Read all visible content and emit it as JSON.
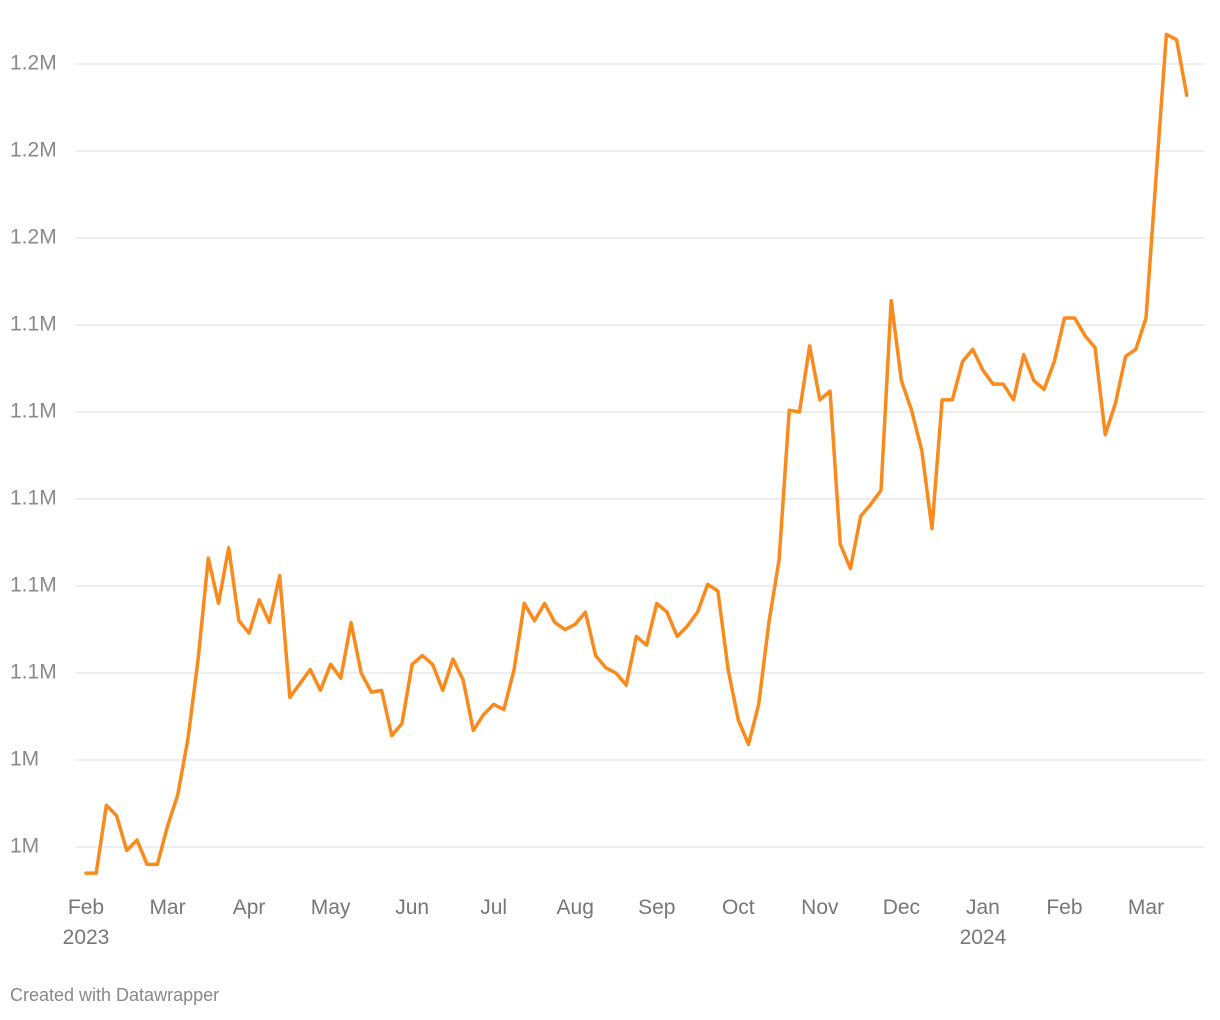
{
  "chart_data": {
    "type": "line",
    "credit": "Created with Datawrapper",
    "categories": [
      "Feb 2023",
      null,
      null,
      null,
      null,
      null,
      null,
      null,
      "Mar",
      null,
      null,
      null,
      null,
      null,
      null,
      null,
      "Apr",
      null,
      null,
      null,
      null,
      null,
      null,
      null,
      "May",
      null,
      null,
      null,
      null,
      null,
      null,
      null,
      "Jun",
      null,
      null,
      null,
      null,
      null,
      null,
      null,
      "Jul",
      null,
      null,
      null,
      null,
      null,
      null,
      null,
      "Aug",
      null,
      null,
      null,
      null,
      null,
      null,
      null,
      "Sep",
      null,
      null,
      null,
      null,
      null,
      null,
      null,
      "Oct",
      null,
      null,
      null,
      null,
      null,
      null,
      null,
      "Nov",
      null,
      null,
      null,
      null,
      null,
      null,
      null,
      "Dec",
      null,
      null,
      null,
      null,
      null,
      null,
      null,
      "Jan 2024",
      null,
      null,
      null,
      null,
      null,
      null,
      null,
      "Feb",
      null,
      null,
      null,
      null,
      null,
      null,
      null,
      "Mar",
      null,
      null,
      null,
      null
    ],
    "values": [
      992500,
      992500,
      1012000,
      1009000,
      999000,
      1002000,
      995000,
      995000,
      1006000,
      1015000,
      1031000,
      1054000,
      1083000,
      1070000,
      1086000,
      1065000,
      1061500,
      1071000,
      1064500,
      1078000,
      1043000,
      1047000,
      1051000,
      1045000,
      1052500,
      1048500,
      1064500,
      1050000,
      1044500,
      1045000,
      1032000,
      1035500,
      1052500,
      1055000,
      1052500,
      1045000,
      1054000,
      1048000,
      1033500,
      1038000,
      1041000,
      1039500,
      1051000,
      1070000,
      1065000,
      1070000,
      1064500,
      1062500,
      1064000,
      1067500,
      1055000,
      1051500,
      1050000,
      1046500,
      1060500,
      1058000,
      1070000,
      1067500,
      1060500,
      1063500,
      1067500,
      1075500,
      1073500,
      1051000,
      1036500,
      1029500,
      1041000,
      1064500,
      1082500,
      1125500,
      1125000,
      1144000,
      1128500,
      1131000,
      1087000,
      1080000,
      1095000,
      1098500,
      1102500,
      1157000,
      1134000,
      1125500,
      1114000,
      1091500,
      1128500,
      1128500,
      1139500,
      1143000,
      1137000,
      1133000,
      1133000,
      1128500,
      1141500,
      1134000,
      1131500,
      1139500,
      1152000,
      1152000,
      1147000,
      1143500,
      1118500,
      1127500,
      1141000,
      1143000,
      1152000,
      1193000,
      1233500,
      1232000,
      1216000
    ],
    "color": "#fa8a1c",
    "ylim": [
      988000,
      1238000
    ],
    "yticks": [
      {
        "value": 1000000,
        "label": "1M"
      },
      {
        "value": 1025000,
        "label": "1M"
      },
      {
        "value": 1050000,
        "label": "1.1M"
      },
      {
        "value": 1075000,
        "label": "1.1M"
      },
      {
        "value": 1100000,
        "label": "1.1M"
      },
      {
        "value": 1125000,
        "label": "1.1M"
      },
      {
        "value": 1150000,
        "label": "1.1M"
      },
      {
        "value": 1175000,
        "label": "1.2M"
      },
      {
        "value": 1200000,
        "label": "1.2M"
      },
      {
        "value": 1225000,
        "label": "1.2M"
      }
    ],
    "grid": true
  }
}
